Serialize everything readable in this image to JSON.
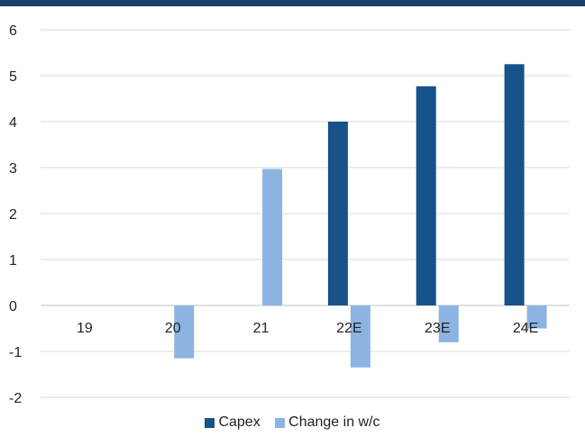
{
  "chart_data": {
    "type": "bar",
    "categories": [
      "19",
      "20",
      "21",
      "22E",
      "23E",
      "24E"
    ],
    "series": [
      {
        "name": "Capex",
        "color": "#17528a",
        "values": [
          0,
          0,
          0,
          4.0,
          4.77,
          5.25
        ]
      },
      {
        "name": "Change in w/c",
        "color": "#8db3e2",
        "values": [
          0,
          -1.15,
          2.97,
          -1.35,
          -0.8,
          -0.5
        ]
      }
    ],
    "ylim": [
      -2,
      6
    ],
    "yticks": [
      6,
      5,
      4,
      3,
      2,
      1,
      0,
      -1,
      -2
    ],
    "grid": true,
    "legend": "bottom"
  },
  "colors": {
    "top_band": "#17426b",
    "grid": "#d9d9d9",
    "axis": "#bfbfbf"
  }
}
